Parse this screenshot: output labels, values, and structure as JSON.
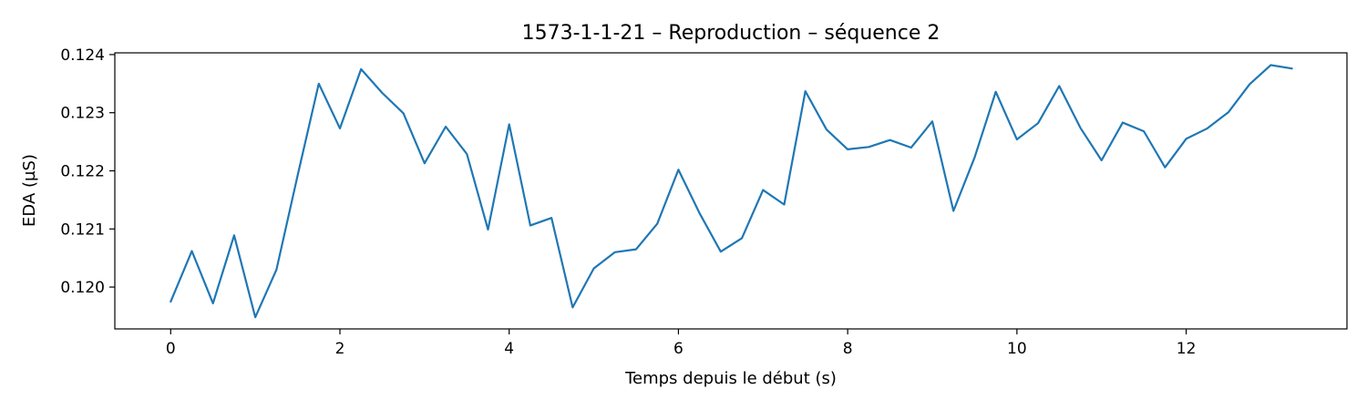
{
  "chart_data": {
    "type": "line",
    "title": "1573-1-1-21 – Reproduction – séquence 2",
    "xlabel": "Temps depuis le début (s)",
    "ylabel": "EDA (µS)",
    "xlim": [
      -0.66,
      13.9
    ],
    "ylim": [
      0.11928,
      0.12403
    ],
    "x_ticks": [
      0,
      2,
      4,
      6,
      8,
      10,
      12
    ],
    "x_tick_labels": [
      "0",
      "2",
      "4",
      "6",
      "8",
      "10",
      "12"
    ],
    "y_ticks": [
      0.12,
      0.121,
      0.122,
      0.123,
      0.124
    ],
    "y_tick_labels": [
      "0.120",
      "0.121",
      "0.122",
      "0.123",
      "0.124"
    ],
    "grid": false,
    "series": [
      {
        "color": "#1f77b4",
        "x": [
          0,
          0.25,
          0.5,
          0.75,
          1,
          1.25,
          1.5,
          1.75,
          2,
          2.25,
          2.5,
          2.75,
          3,
          3.25,
          3.5,
          3.75,
          4,
          4.25,
          4.5,
          4.75,
          5,
          5.25,
          5.5,
          5.75,
          6,
          6.25,
          6.5,
          6.75,
          7,
          7.25,
          7.5,
          7.75,
          8,
          8.25,
          8.5,
          8.75,
          9,
          9.25,
          9.5,
          9.75,
          10,
          10.25,
          10.5,
          10.75,
          11,
          11.25,
          11.5,
          11.75,
          12,
          12.25,
          12.5,
          12.75,
          13,
          13.25
        ],
        "y": [
          0.11975,
          0.12062,
          0.11972,
          0.12089,
          0.11948,
          0.1203,
          0.12192,
          0.1235,
          0.12273,
          0.12375,
          0.12334,
          0.12299,
          0.12213,
          0.12276,
          0.12229,
          0.12099,
          0.1228,
          0.12106,
          0.12119,
          0.11965,
          0.12032,
          0.1206,
          0.12065,
          0.12109,
          0.12202,
          0.12127,
          0.12061,
          0.12084,
          0.12167,
          0.12142,
          0.12337,
          0.12271,
          0.12237,
          0.12241,
          0.12253,
          0.1224,
          0.12285,
          0.12131,
          0.12223,
          0.12336,
          0.12254,
          0.12282,
          0.12346,
          0.12274,
          0.12218,
          0.12283,
          0.12268,
          0.12206,
          0.12255,
          0.12273,
          0.12301,
          0.12349,
          0.12382,
          0.12376
        ]
      }
    ]
  }
}
